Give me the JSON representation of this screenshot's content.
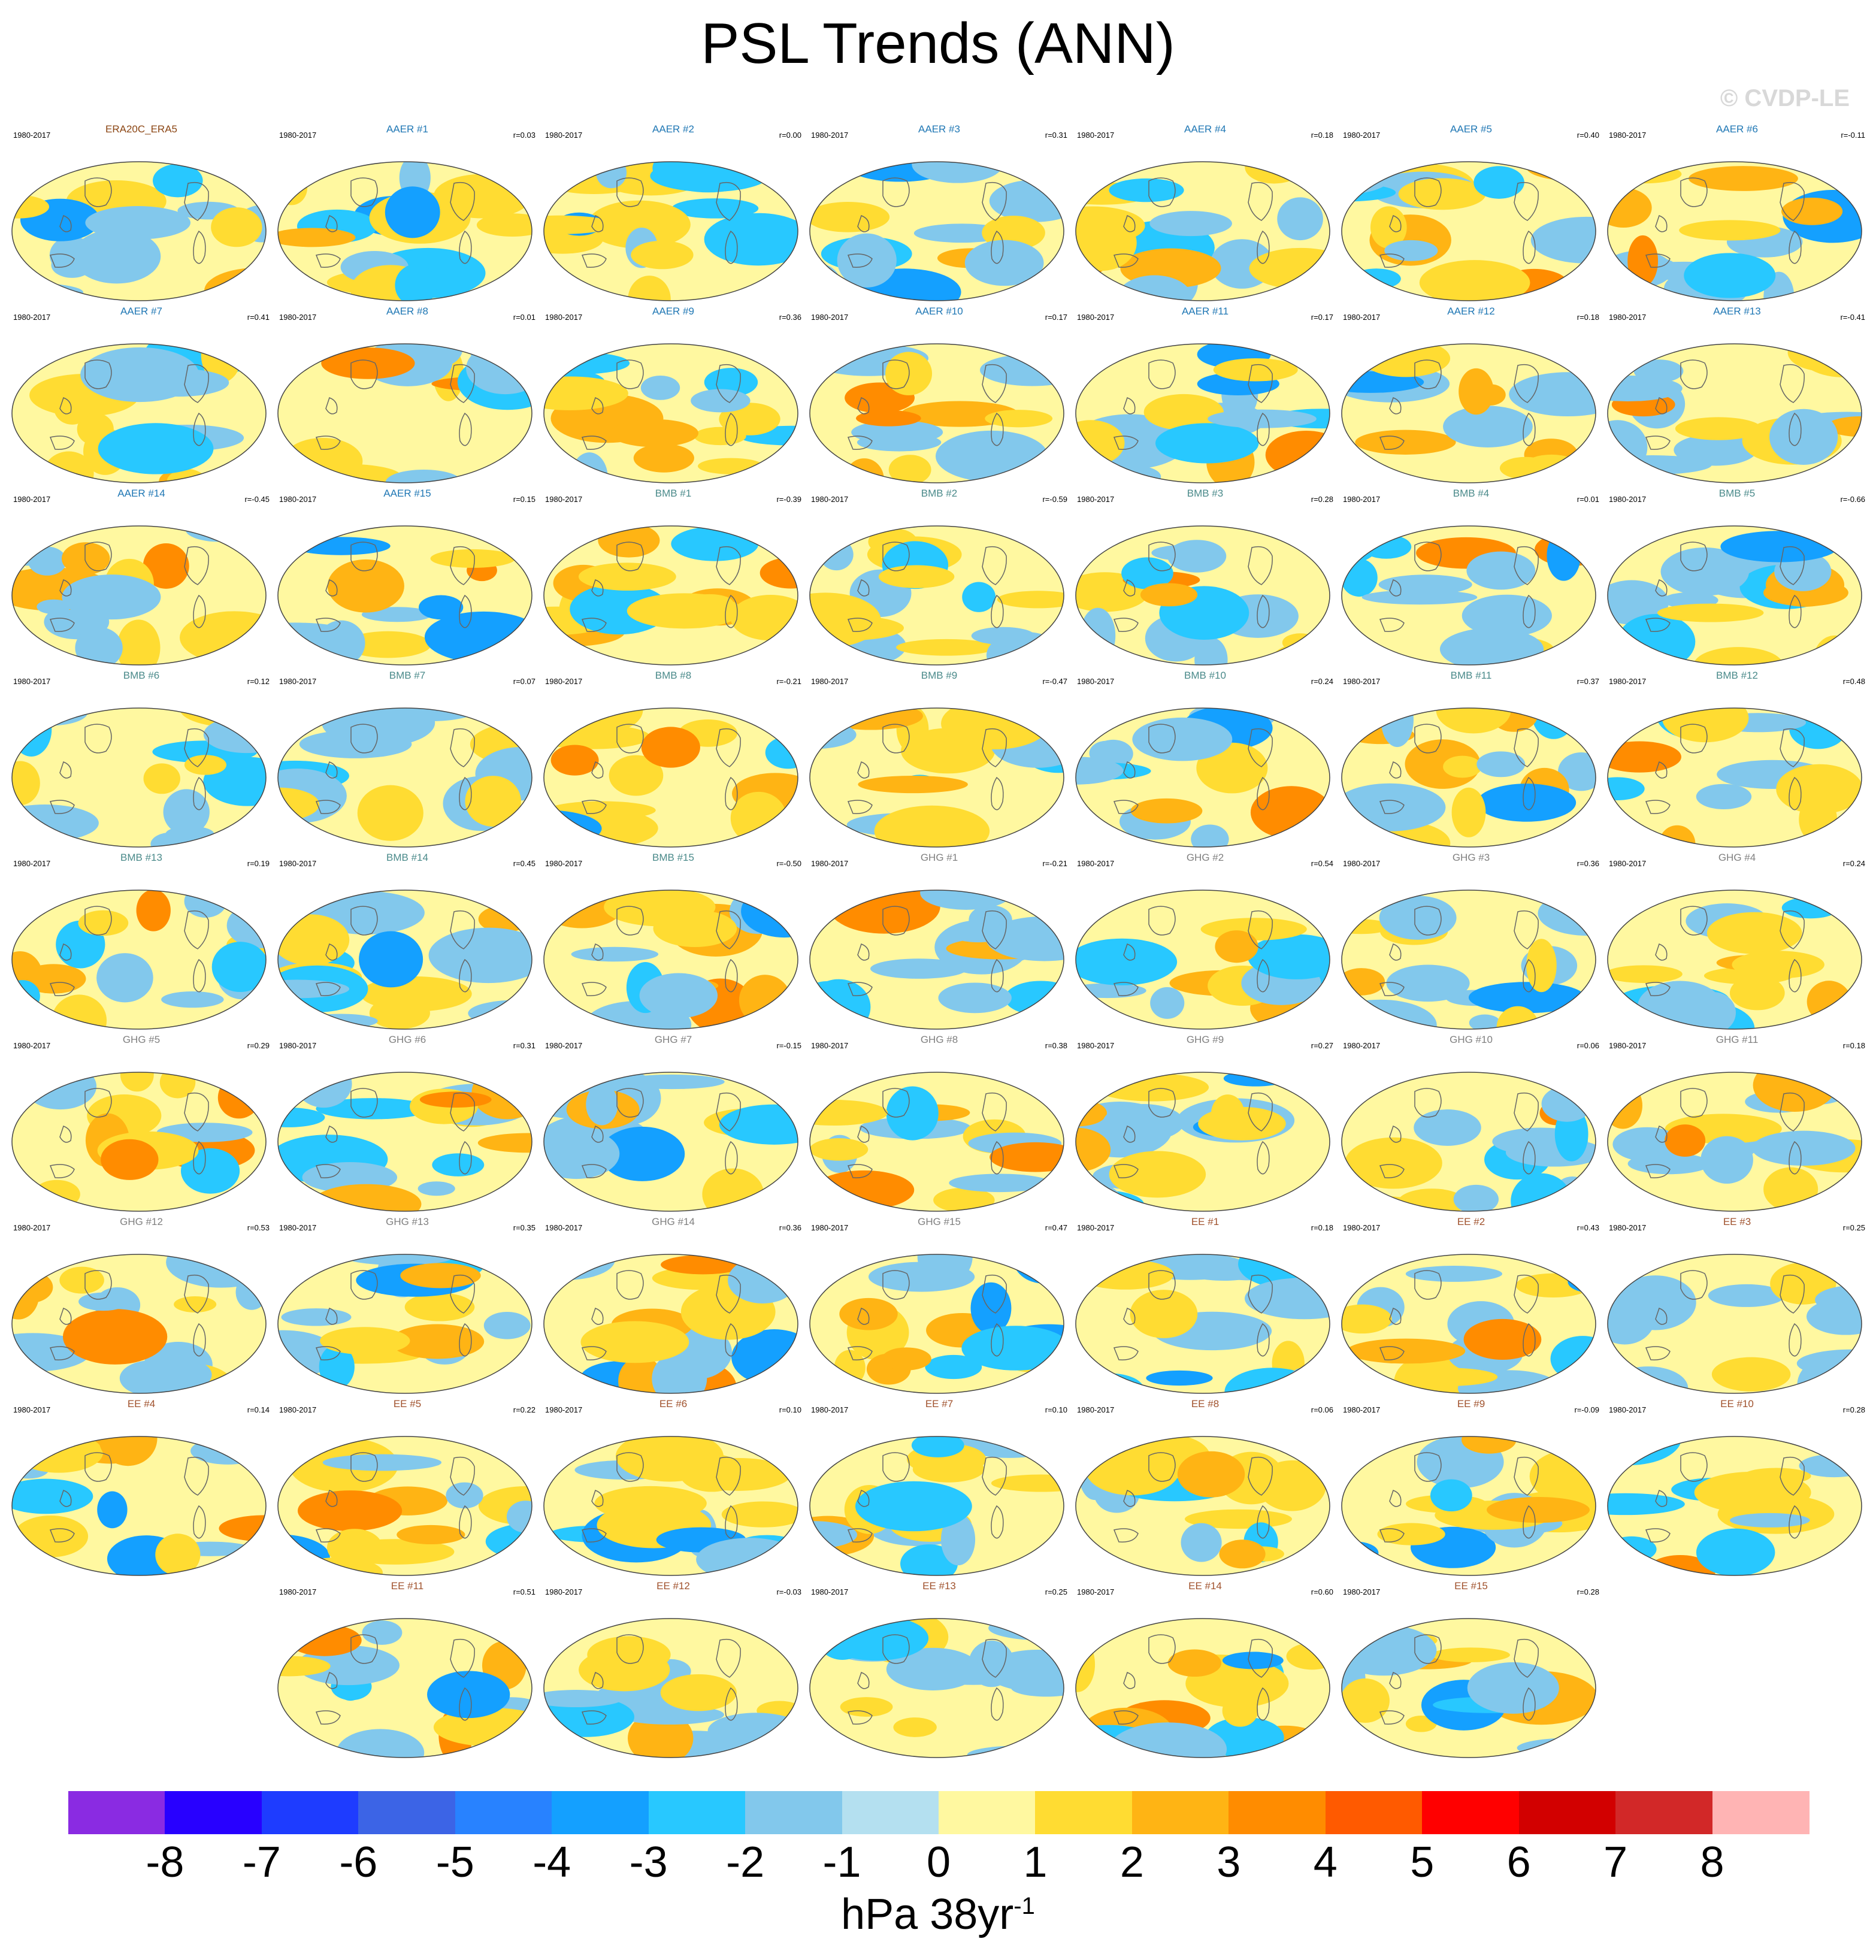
{
  "title": "PSL Trends (ANN)",
  "watermark": "© CVDP-LE",
  "chart_data": {
    "type": "map-panel-grid",
    "title": "PSL Trends (ANN)",
    "units": "hPa 38yr",
    "units_exponent": "-1",
    "period": "1980-2017",
    "colorbar": {
      "ticks": [
        "-8",
        "-7",
        "-6",
        "-5",
        "-4",
        "-3",
        "-2",
        "-1",
        "0",
        "1",
        "2",
        "3",
        "4",
        "5",
        "6",
        "7",
        "8"
      ],
      "colors": [
        "#8a2be2",
        "#2800ff",
        "#1e3cff",
        "#3c64e6",
        "#2882ff",
        "#14a0ff",
        "#28c8ff",
        "#82c8ec",
        "#b4e0f0",
        "#fff8a0",
        "#ffdc32",
        "#ffb414",
        "#ff8c00",
        "#ff5a00",
        "#ff0000",
        "#d20000",
        "#d22828",
        "#ffb4b4"
      ]
    },
    "panels": [
      {
        "case": "ERA20C_ERA5",
        "period": "1980-2017",
        "r": "",
        "color": "#8b4513"
      },
      {
        "case": "AAER #1",
        "period": "1980-2017",
        "r": "r=0.03",
        "color": "#1f77b4"
      },
      {
        "case": "AAER #2",
        "period": "1980-2017",
        "r": "r=0.00",
        "color": "#1f77b4"
      },
      {
        "case": "AAER #3",
        "period": "1980-2017",
        "r": "r=0.31",
        "color": "#1f77b4"
      },
      {
        "case": "AAER #4",
        "period": "1980-2017",
        "r": "r=0.18",
        "color": "#1f77b4"
      },
      {
        "case": "AAER #5",
        "period": "1980-2017",
        "r": "r=0.40",
        "color": "#1f77b4"
      },
      {
        "case": "AAER #6",
        "period": "1980-2017",
        "r": "r=-0.11",
        "color": "#1f77b4"
      },
      {
        "case": "AAER #7",
        "period": "1980-2017",
        "r": "r=0.41",
        "color": "#1f77b4"
      },
      {
        "case": "AAER #8",
        "period": "1980-2017",
        "r": "r=0.01",
        "color": "#1f77b4"
      },
      {
        "case": "AAER #9",
        "period": "1980-2017",
        "r": "r=0.36",
        "color": "#1f77b4"
      },
      {
        "case": "AAER #10",
        "period": "1980-2017",
        "r": "r=0.17",
        "color": "#1f77b4"
      },
      {
        "case": "AAER #11",
        "period": "1980-2017",
        "r": "r=0.17",
        "color": "#1f77b4"
      },
      {
        "case": "AAER #12",
        "period": "1980-2017",
        "r": "r=0.18",
        "color": "#1f77b4"
      },
      {
        "case": "AAER #13",
        "period": "1980-2017",
        "r": "r=-0.41",
        "color": "#1f77b4"
      },
      {
        "case": "AAER #14",
        "period": "1980-2017",
        "r": "r=-0.45",
        "color": "#1f77b4"
      },
      {
        "case": "AAER #15",
        "period": "1980-2017",
        "r": "r=0.15",
        "color": "#1f77b4"
      },
      {
        "case": "BMB #1",
        "period": "1980-2017",
        "r": "r=-0.39",
        "color": "#4a8a8a"
      },
      {
        "case": "BMB #2",
        "period": "1980-2017",
        "r": "r=-0.59",
        "color": "#4a8a8a"
      },
      {
        "case": "BMB #3",
        "period": "1980-2017",
        "r": "r=0.28",
        "color": "#4a8a8a"
      },
      {
        "case": "BMB #4",
        "period": "1980-2017",
        "r": "r=0.01",
        "color": "#4a8a8a"
      },
      {
        "case": "BMB #5",
        "period": "1980-2017",
        "r": "r=-0.66",
        "color": "#4a8a8a"
      },
      {
        "case": "BMB #6",
        "period": "1980-2017",
        "r": "r=0.12",
        "color": "#4a8a8a"
      },
      {
        "case": "BMB #7",
        "period": "1980-2017",
        "r": "r=0.07",
        "color": "#4a8a8a"
      },
      {
        "case": "BMB #8",
        "period": "1980-2017",
        "r": "r=-0.21",
        "color": "#4a8a8a"
      },
      {
        "case": "BMB #9",
        "period": "1980-2017",
        "r": "r=-0.47",
        "color": "#4a8a8a"
      },
      {
        "case": "BMB #10",
        "period": "1980-2017",
        "r": "r=0.24",
        "color": "#4a8a8a"
      },
      {
        "case": "BMB #11",
        "period": "1980-2017",
        "r": "r=0.37",
        "color": "#4a8a8a"
      },
      {
        "case": "BMB #12",
        "period": "1980-2017",
        "r": "r=0.48",
        "color": "#4a8a8a"
      },
      {
        "case": "BMB #13",
        "period": "1980-2017",
        "r": "r=0.19",
        "color": "#4a8a8a"
      },
      {
        "case": "BMB #14",
        "period": "1980-2017",
        "r": "r=0.45",
        "color": "#4a8a8a"
      },
      {
        "case": "BMB #15",
        "period": "1980-2017",
        "r": "r=-0.50",
        "color": "#4a8a8a"
      },
      {
        "case": "GHG #1",
        "period": "1980-2017",
        "r": "r=-0.21",
        "color": "#808080"
      },
      {
        "case": "GHG #2",
        "period": "1980-2017",
        "r": "r=0.54",
        "color": "#808080"
      },
      {
        "case": "GHG #3",
        "period": "1980-2017",
        "r": "r=0.36",
        "color": "#808080"
      },
      {
        "case": "GHG #4",
        "period": "1980-2017",
        "r": "r=0.24",
        "color": "#808080"
      },
      {
        "case": "GHG #5",
        "period": "1980-2017",
        "r": "r=0.29",
        "color": "#808080"
      },
      {
        "case": "GHG #6",
        "period": "1980-2017",
        "r": "r=0.31",
        "color": "#808080"
      },
      {
        "case": "GHG #7",
        "period": "1980-2017",
        "r": "r=-0.15",
        "color": "#808080"
      },
      {
        "case": "GHG #8",
        "period": "1980-2017",
        "r": "r=0.38",
        "color": "#808080"
      },
      {
        "case": "GHG #9",
        "period": "1980-2017",
        "r": "r=0.27",
        "color": "#808080"
      },
      {
        "case": "GHG #10",
        "period": "1980-2017",
        "r": "r=0.06",
        "color": "#808080"
      },
      {
        "case": "GHG #11",
        "period": "1980-2017",
        "r": "r=0.18",
        "color": "#808080"
      },
      {
        "case": "GHG #12",
        "period": "1980-2017",
        "r": "r=0.53",
        "color": "#808080"
      },
      {
        "case": "GHG #13",
        "period": "1980-2017",
        "r": "r=0.35",
        "color": "#808080"
      },
      {
        "case": "GHG #14",
        "period": "1980-2017",
        "r": "r=0.36",
        "color": "#808080"
      },
      {
        "case": "GHG #15",
        "period": "1980-2017",
        "r": "r=0.47",
        "color": "#808080"
      },
      {
        "case": "EE #1",
        "period": "1980-2017",
        "r": "r=0.18",
        "color": "#a0522d"
      },
      {
        "case": "EE #2",
        "period": "1980-2017",
        "r": "r=0.43",
        "color": "#a0522d"
      },
      {
        "case": "EE #3",
        "period": "1980-2017",
        "r": "r=0.25",
        "color": "#a0522d"
      },
      {
        "case": "EE #4",
        "period": "1980-2017",
        "r": "r=0.14",
        "color": "#a0522d"
      },
      {
        "case": "EE #5",
        "period": "1980-2017",
        "r": "r=0.22",
        "color": "#a0522d"
      },
      {
        "case": "EE #6",
        "period": "1980-2017",
        "r": "r=0.10",
        "color": "#a0522d"
      },
      {
        "case": "EE #7",
        "period": "1980-2017",
        "r": "r=0.10",
        "color": "#a0522d"
      },
      {
        "case": "EE #8",
        "period": "1980-2017",
        "r": "r=0.06",
        "color": "#a0522d"
      },
      {
        "case": "EE #9",
        "period": "1980-2017",
        "r": "r=-0.09",
        "color": "#a0522d"
      },
      {
        "case": "EE #10",
        "period": "1980-2017",
        "r": "r=0.28",
        "color": "#a0522d"
      },
      {
        "case": "EE #11",
        "period": "1980-2017",
        "r": "r=0.51",
        "color": "#a0522d"
      },
      {
        "case": "EE #12",
        "period": "1980-2017",
        "r": "r=-0.03",
        "color": "#a0522d"
      },
      {
        "case": "EE #13",
        "period": "1980-2017",
        "r": "r=0.25",
        "color": "#a0522d"
      },
      {
        "case": "EE #14",
        "period": "1980-2017",
        "r": "r=0.60",
        "color": "#a0522d"
      },
      {
        "case": "EE #15",
        "period": "1980-2017",
        "r": "r=0.28",
        "color": "#a0522d"
      }
    ]
  }
}
